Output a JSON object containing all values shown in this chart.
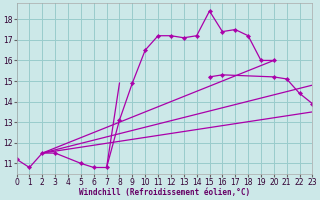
{
  "background_color": "#cce8e8",
  "grid_color": "#99cccc",
  "line_color": "#aa00aa",
  "xlabel": "Windchill (Refroidissement éolien,°C)",
  "xlim": [
    0,
    23
  ],
  "ylim": [
    10.5,
    18.8
  ],
  "xticks": [
    0,
    1,
    2,
    3,
    4,
    5,
    6,
    7,
    8,
    9,
    10,
    11,
    12,
    13,
    14,
    15,
    16,
    17,
    18,
    19,
    20,
    21,
    22,
    23
  ],
  "yticks": [
    11,
    12,
    13,
    14,
    15,
    16,
    17,
    18
  ],
  "curve1_x": [
    0,
    1,
    2,
    3,
    5,
    6,
    7,
    8,
    9,
    10,
    11,
    12,
    13,
    14,
    15,
    16,
    17,
    18,
    19,
    20
  ],
  "curve1_y": [
    11.2,
    10.8,
    11.5,
    11.5,
    11.0,
    10.8,
    10.8,
    13.1,
    14.9,
    16.5,
    17.2,
    17.2,
    17.1,
    17.2,
    18.4,
    17.4,
    17.5,
    17.2,
    16.0,
    16.0
  ],
  "curve2_x": [
    7,
    8
  ],
  "curve2_y": [
    10.8,
    14.9
  ],
  "curve2b_x": [
    15,
    16,
    20,
    21,
    22,
    23
  ],
  "curve2b_y": [
    15.2,
    15.3,
    15.2,
    15.1,
    14.4,
    13.9
  ],
  "line1_x": [
    2,
    20
  ],
  "line1_y": [
    11.5,
    16.0
  ],
  "line2_x": [
    2,
    23
  ],
  "line2_y": [
    11.5,
    14.8
  ],
  "line3_x": [
    2,
    23
  ],
  "line3_y": [
    11.5,
    13.5
  ]
}
